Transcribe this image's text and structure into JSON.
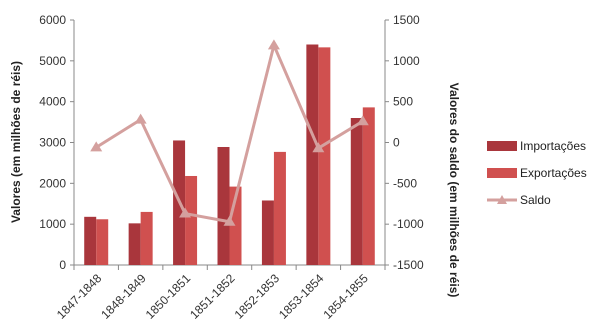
{
  "chart_data": {
    "type": "bar",
    "categories": [
      "1847-1848",
      "1848-1849",
      "1850-1851",
      "1851-1852",
      "1852-1853",
      "1853-1854",
      "1854-1855"
    ],
    "series": [
      {
        "name": "Importações",
        "type": "bar",
        "axis": "left",
        "color": "#a9363c",
        "values": [
          1180,
          1020,
          3050,
          2890,
          1580,
          5400,
          3600
        ]
      },
      {
        "name": "Exportações",
        "type": "bar",
        "axis": "left",
        "color": "#d0504f",
        "values": [
          1120,
          1300,
          2180,
          1920,
          2770,
          5330,
          3860
        ]
      },
      {
        "name": "Saldo",
        "type": "line",
        "axis": "right",
        "color": "#d4a09e",
        "values": [
          -60,
          280,
          -870,
          -970,
          1190,
          -70,
          260
        ]
      }
    ],
    "ylabel": "Valores (em milhões de réis)",
    "y2label": "Valores do saldo (em milhões de réis)",
    "ylim": [
      0,
      6000
    ],
    "y2lim": [
      -1500,
      1500
    ],
    "yticks": [
      "0",
      "1000",
      "2000",
      "3000",
      "4000",
      "5000",
      "6000"
    ],
    "y2ticks": [
      "-1500",
      "-1000",
      "-500",
      "0",
      "500",
      "1000",
      "1500"
    ],
    "grid": false,
    "legend_position": "right"
  }
}
